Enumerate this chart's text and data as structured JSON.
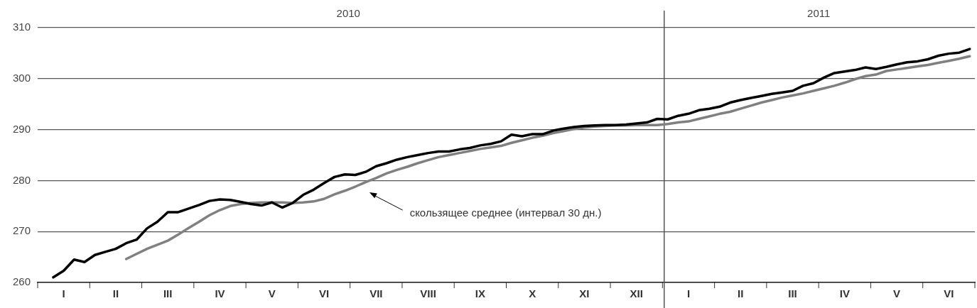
{
  "chart_data": {
    "type": "line",
    "grid": "y",
    "ylim": [
      260,
      310
    ],
    "yticks": [
      260,
      270,
      280,
      290,
      300,
      310
    ],
    "categories": [
      null,
      null,
      "I",
      null,
      null,
      null,
      null,
      "II",
      null,
      null,
      null,
      null,
      "III",
      null,
      null,
      null,
      null,
      "IV",
      null,
      null,
      null,
      null,
      "V",
      null,
      null,
      null,
      null,
      "VI",
      null,
      null,
      null,
      null,
      "VII",
      null,
      null,
      null,
      null,
      "VIII",
      null,
      null,
      null,
      null,
      "IX",
      null,
      null,
      null,
      null,
      "X",
      null,
      null,
      null,
      null,
      "XI",
      null,
      null,
      null,
      null,
      "XII",
      null,
      null,
      null,
      null,
      "I",
      null,
      null,
      null,
      null,
      "II",
      null,
      null,
      null,
      null,
      "III",
      null,
      null,
      null,
      null,
      "IV",
      null,
      null,
      null,
      null,
      "V",
      null,
      null,
      null,
      null,
      "VI",
      null,
      null
    ],
    "x2lim": [
      "2010-01-01",
      "2011-07-01"
    ],
    "x2ticks": [
      {
        "value": "2010-07-01",
        "label": "2010"
      },
      {
        "value": "2011-04-01",
        "label": "2011"
      }
    ],
    "ref_lines": [
      {
        "axis": "x2",
        "value": "2011-01-01",
        "color": "#555555"
      }
    ],
    "annotations": [
      "скользящее среднее (интервал 30 дн.)"
    ],
    "series": [
      {
        "color": "#000000",
        "values": [
          null,
          261.0,
          262.3,
          264.5,
          264.0,
          265.4,
          266.0,
          266.6,
          267.7,
          268.4,
          270.6,
          271.9,
          273.8,
          273.8,
          274.5,
          275.2,
          276.0,
          276.3,
          276.2,
          275.8,
          275.4,
          275.1,
          275.7,
          274.7,
          275.6,
          277.2,
          278.2,
          279.5,
          280.7,
          281.2,
          281.1,
          281.7,
          282.8,
          283.4,
          284.1,
          284.6,
          285.0,
          285.4,
          285.7,
          285.7,
          286.1,
          286.4,
          286.9,
          287.2,
          287.7,
          289.0,
          288.7,
          289.1,
          289.1,
          289.8,
          290.2,
          290.5,
          290.7,
          290.8,
          290.9,
          290.9,
          291.0,
          291.2,
          291.4,
          292.1,
          292.0,
          292.7,
          293.1,
          293.8,
          294.1,
          294.5,
          295.3,
          295.8,
          296.2,
          296.6,
          297.0,
          297.3,
          297.6,
          298.6,
          299.1,
          300.2,
          301.1,
          301.4,
          301.7,
          302.2,
          301.9,
          302.3,
          302.8,
          303.2,
          303.4,
          303.8,
          304.5,
          304.9,
          305.1,
          305.8
        ]
      },
      {
        "color": "#808080",
        "values": [
          null,
          null,
          null,
          null,
          null,
          null,
          null,
          null,
          264.6,
          265.6,
          266.6,
          267.4,
          268.2,
          269.4,
          270.7,
          271.9,
          273.2,
          274.2,
          275.0,
          275.4,
          275.6,
          275.7,
          275.7,
          275.7,
          275.6,
          275.7,
          275.9,
          276.4,
          277.3,
          278.0,
          278.8,
          279.7,
          280.5,
          281.4,
          282.1,
          282.7,
          283.4,
          284.0,
          284.6,
          285.0,
          285.4,
          285.8,
          286.2,
          286.5,
          286.8,
          287.4,
          287.9,
          288.4,
          288.8,
          289.3,
          289.7,
          290.1,
          290.4,
          290.6,
          290.7,
          290.8,
          290.8,
          290.9,
          290.9,
          290.9,
          291.1,
          291.4,
          291.6,
          292.1,
          292.6,
          293.1,
          293.5,
          294.1,
          294.7,
          295.3,
          295.8,
          296.3,
          296.7,
          297.1,
          297.6,
          298.1,
          298.6,
          299.2,
          299.9,
          300.5,
          300.8,
          301.5,
          301.8,
          302.1,
          302.4,
          302.7,
          303.1,
          303.5,
          303.9,
          304.4
        ]
      }
    ]
  }
}
